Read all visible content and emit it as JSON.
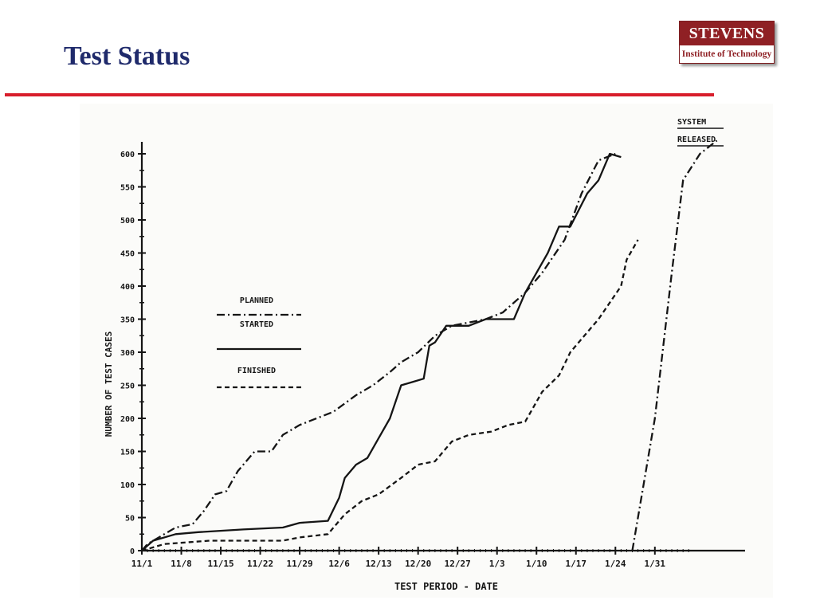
{
  "slide": {
    "title": "Test Status"
  },
  "logo": {
    "name": "STEVENS",
    "tagline": "Institute of Technology",
    "color": "#8f2024"
  },
  "colors": {
    "title": "#1f2a6b",
    "rule": "#d81e2b",
    "ink": "#151515"
  },
  "chart_data": {
    "type": "line",
    "xlabel": "TEST PERIOD - DATE",
    "ylabel": "NUMBER OF TEST CASES",
    "x_tick_labels": [
      "11/1",
      "11/8",
      "11/15",
      "11/22",
      "11/29",
      "12/6",
      "12/13",
      "12/20",
      "12/27",
      "1/3",
      "1/10",
      "1/17",
      "1/24",
      "1/31"
    ],
    "x_unit": "days since 11/1",
    "y_ticks": [
      0,
      50,
      100,
      150,
      200,
      250,
      300,
      350,
      400,
      450,
      500,
      550,
      600
    ],
    "ylim": [
      0,
      600
    ],
    "legend": [
      "PLANNED",
      "STARTED",
      "FINISHED"
    ],
    "legend_position": "middle-left",
    "legend_top_right": [
      "SYSTEM",
      "RELEASED"
    ],
    "series": [
      {
        "name": "PLANNED",
        "style": "dash-dot",
        "points": [
          [
            0,
            0
          ],
          [
            1,
            10
          ],
          [
            4,
            25
          ],
          [
            6,
            35
          ],
          [
            9,
            40
          ],
          [
            11,
            60
          ],
          [
            13,
            85
          ],
          [
            15,
            90
          ],
          [
            17,
            120
          ],
          [
            20,
            150
          ],
          [
            23,
            150
          ],
          [
            25,
            175
          ],
          [
            28,
            190
          ],
          [
            31,
            200
          ],
          [
            34,
            210
          ],
          [
            38,
            235
          ],
          [
            41,
            250
          ],
          [
            44,
            270
          ],
          [
            46,
            285
          ],
          [
            49,
            300
          ],
          [
            52,
            325
          ],
          [
            55,
            340
          ],
          [
            58,
            345
          ],
          [
            61,
            350
          ],
          [
            64,
            360
          ],
          [
            68,
            390
          ],
          [
            71,
            420
          ],
          [
            75,
            470
          ],
          [
            78,
            540
          ],
          [
            81,
            590
          ],
          [
            84,
            600
          ]
        ]
      },
      {
        "name": "STARTED",
        "style": "solid",
        "points": [
          [
            0,
            0
          ],
          [
            2,
            15
          ],
          [
            6,
            25
          ],
          [
            10,
            28
          ],
          [
            18,
            32
          ],
          [
            25,
            35
          ],
          [
            28,
            42
          ],
          [
            33,
            45
          ],
          [
            35,
            80
          ],
          [
            36,
            110
          ],
          [
            38,
            130
          ],
          [
            40,
            140
          ],
          [
            42,
            170
          ],
          [
            44,
            200
          ],
          [
            46,
            250
          ],
          [
            48,
            255
          ],
          [
            50,
            260
          ],
          [
            51,
            310
          ],
          [
            52,
            315
          ],
          [
            54,
            340
          ],
          [
            58,
            340
          ],
          [
            61,
            350
          ],
          [
            66,
            350
          ],
          [
            68,
            390
          ],
          [
            70,
            420
          ],
          [
            72,
            450
          ],
          [
            74,
            490
          ],
          [
            76,
            490
          ],
          [
            79,
            540
          ],
          [
            81,
            560
          ],
          [
            83,
            600
          ],
          [
            85,
            595
          ]
        ]
      },
      {
        "name": "FINISHED",
        "style": "short-dash",
        "points": [
          [
            0,
            0
          ],
          [
            4,
            10
          ],
          [
            12,
            15
          ],
          [
            25,
            15
          ],
          [
            28,
            20
          ],
          [
            33,
            25
          ],
          [
            36,
            55
          ],
          [
            39,
            75
          ],
          [
            42,
            85
          ],
          [
            46,
            110
          ],
          [
            49,
            130
          ],
          [
            52,
            135
          ],
          [
            55,
            165
          ],
          [
            58,
            175
          ],
          [
            62,
            180
          ],
          [
            65,
            190
          ],
          [
            68,
            195
          ],
          [
            71,
            240
          ],
          [
            74,
            265
          ],
          [
            76,
            300
          ],
          [
            78,
            320
          ],
          [
            81,
            350
          ],
          [
            83,
            375
          ],
          [
            85,
            400
          ],
          [
            86,
            440
          ],
          [
            88,
            470
          ]
        ]
      },
      {
        "name": "SYSTEM RELEASED",
        "style": "dash-dot",
        "points": [
          [
            87,
            0
          ],
          [
            91,
            200
          ],
          [
            94,
            420
          ],
          [
            96,
            560
          ],
          [
            99,
            600
          ],
          [
            102,
            620
          ]
        ]
      }
    ]
  }
}
